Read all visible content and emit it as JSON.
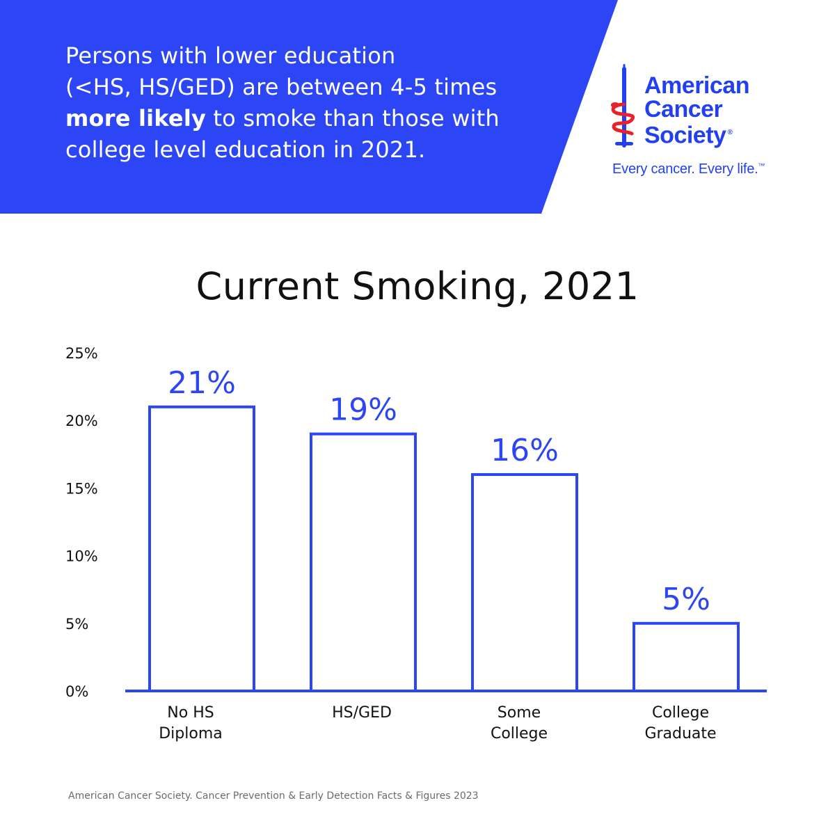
{
  "header": {
    "headline_line1": "Persons with lower education",
    "headline_line2": "(<HS, HS/GED) are between 4-5 times",
    "headline_bold": "more likely",
    "headline_line3_rest": " to smoke than those with",
    "headline_line4": "college level education in 2021.",
    "banner_color": "#2c45f5"
  },
  "logo": {
    "line1": "American",
    "line2": "Cancer",
    "line3": "Society",
    "registered": "®",
    "tagline": "Every cancer. Every life.",
    "trademark": "™",
    "brand_blue": "#2340f0",
    "brand_red": "#e8212b",
    "icon": "sword-and-serpent-icon"
  },
  "chart_data": {
    "type": "bar",
    "title": "Current Smoking, 2021",
    "categories": [
      "No HS\nDiploma",
      "HS/GED",
      "Some\nCollege",
      "College\nGraduate"
    ],
    "values": [
      21,
      19,
      16,
      5
    ],
    "data_labels": [
      "21%",
      "19%",
      "16%",
      "5%"
    ],
    "yticks": [
      0,
      5,
      10,
      15,
      20,
      25
    ],
    "ytick_labels": [
      "0%",
      "5%",
      "10%",
      "15%",
      "20%",
      "25%"
    ],
    "ylim": [
      0,
      25
    ],
    "xlabel": "",
    "ylabel": "",
    "grid": false,
    "bar_style": "outline",
    "bar_color": "#2c45f5"
  },
  "source": {
    "text": "American Cancer Society. Cancer Prevention & Early Detection Facts & Figures 2023"
  }
}
